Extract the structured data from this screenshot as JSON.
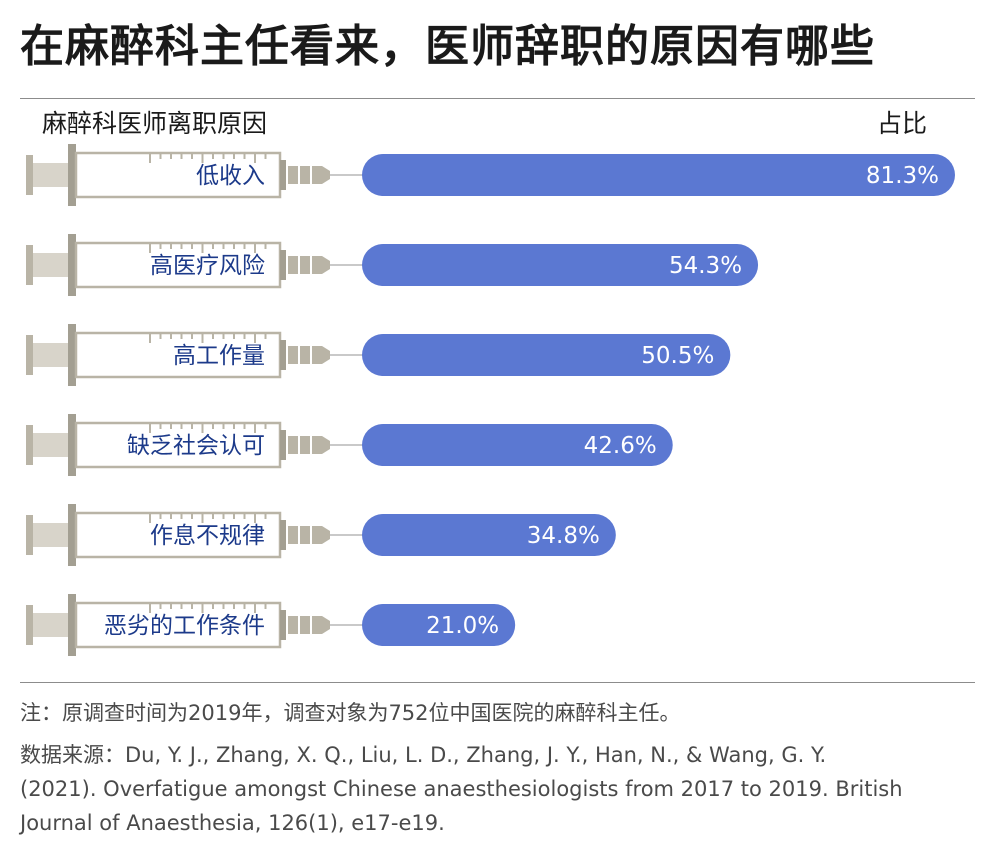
{
  "title": "在麻醉科主任看来，医师辞职的原因有哪些",
  "header": {
    "left_label": "麻醉科医师离职原因",
    "right_label": "占比"
  },
  "chart_data": {
    "type": "bar",
    "orientation": "horizontal",
    "categories": [
      "低收入",
      "高医疗风险",
      "高工作量",
      "缺乏社会认可",
      "作息不规律",
      "恶劣的工作条件"
    ],
    "values": [
      81.3,
      54.3,
      50.5,
      42.6,
      34.8,
      21.0
    ],
    "value_labels": [
      "81.3%",
      "54.3%",
      "50.5%",
      "42.6%",
      "34.8%",
      "21.0%"
    ],
    "unit": "%",
    "xlim": [
      0,
      81.3
    ],
    "legend": "none",
    "grid": false,
    "colors": {
      "bar": "#5b78d2",
      "category_text": "#1c3a8a",
      "syringe": "#b9b4a6",
      "syringe_dark": "#a39f92"
    }
  },
  "footer": {
    "note": "注：原调查时间为2019年，调查对象为752位中国医院的麻醉科主任。",
    "source_line1": "数据来源：Du, Y. J., Zhang, X. Q., Liu, L. D., Zhang, J. Y., Han, N., & Wang, G. Y.",
    "source_line2": "(2021). Overfatigue amongst Chinese anaesthesiologists from 2017 to 2019. British",
    "source_line3": "Journal of Anaesthesia, 126(1), e17-e19."
  }
}
